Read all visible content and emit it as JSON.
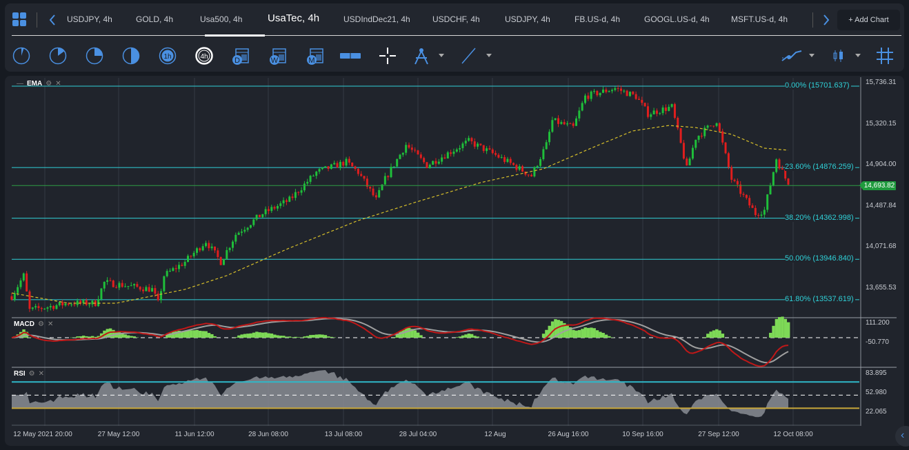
{
  "tabs": [
    "USDJPY, 4h",
    "GOLD, 4h",
    "Usa500, 4h",
    "UsaTec, 4h",
    "USDIndDec21, 4h",
    "USDCHF, 4h",
    "USDJPY, 4h",
    "FB.US-d, 4h",
    "GOOGL.US-d, 4h",
    "MSFT.US-d, 4h"
  ],
  "active_tab": 3,
  "add_chart": "+ Add Chart",
  "toolbar": {
    "timeframes": [
      "1m",
      "5m",
      "15m",
      "30m",
      "1h",
      "4h",
      "D",
      "W",
      "M"
    ],
    "icons": [
      "grid-icon",
      "chevron-left-icon",
      "chevron-right-icon",
      "ruler-icon",
      "crosshair-icon",
      "compass-icon",
      "line-tool-icon",
      "indicator-icon",
      "candle-type-icon",
      "hash-grid-icon"
    ]
  },
  "panes": {
    "main": "EMA",
    "macd": "MACD",
    "rsi": "RSI"
  },
  "price_axis": [
    "15,736.31",
    "15,320.15",
    "14,904.00",
    "14,487.84",
    "14,071.68",
    "13,655.53"
  ],
  "current_price": "14,693.82",
  "fib_levels": [
    {
      "label": "0.00% (15701.637)",
      "price": 15701.637
    },
    {
      "label": "23.60% (14876.259)",
      "price": 14876.259
    },
    {
      "label": "38.20% (14362.998)",
      "price": 14362.998
    },
    {
      "label": "50.00% (13946.840)",
      "price": 13946.84
    },
    {
      "label": "61.80% (13537.619)",
      "price": 13537.619
    }
  ],
  "macd_axis": [
    "111.200",
    "-50.770"
  ],
  "rsi_axis": [
    "83.895",
    "52.980",
    "22.065"
  ],
  "time_axis": [
    "12 May 2021 20:00",
    "27 May 12:00",
    "11 Jun 12:00",
    "28 Jun 08:00",
    "13 Jul 08:00",
    "28 Jul 04:00",
    "12 Aug",
    "26 Aug 16:00",
    "10 Sep 16:00",
    "27 Sep 12:00",
    "12 Oct 08:00"
  ],
  "colors": {
    "up": "#1fbf3a",
    "down": "#e01e1e",
    "fib": "#2fd1d8",
    "ema": "#d8c02a",
    "accent": "#4a90e2"
  },
  "chart_data": {
    "type": "candlestick",
    "symbol": "UsaTec, 4h",
    "bars": 260,
    "close_path": [
      [
        0,
        13572
      ],
      [
        4,
        13782
      ],
      [
        6,
        13432
      ],
      [
        19,
        13502
      ],
      [
        28,
        13502
      ],
      [
        31,
        13712
      ],
      [
        47,
        13642
      ],
      [
        49,
        13502
      ],
      [
        51,
        13782
      ],
      [
        58,
        13921
      ],
      [
        65,
        14131
      ],
      [
        70,
        13921
      ],
      [
        75,
        14200
      ],
      [
        84,
        14410
      ],
      [
        93,
        14549
      ],
      [
        102,
        14829
      ],
      [
        112,
        14933
      ],
      [
        116,
        14829
      ],
      [
        122,
        14549
      ],
      [
        125,
        14759
      ],
      [
        132,
        15108
      ],
      [
        139,
        14898
      ],
      [
        153,
        15143
      ],
      [
        162,
        15003
      ],
      [
        174,
        14794
      ],
      [
        179,
        15108
      ],
      [
        181,
        15352
      ],
      [
        188,
        15282
      ],
      [
        192,
        15597
      ],
      [
        202,
        15680
      ],
      [
        209,
        15597
      ],
      [
        213,
        15422
      ],
      [
        221,
        15492
      ],
      [
        226,
        14864
      ],
      [
        229,
        15178
      ],
      [
        236,
        15352
      ],
      [
        241,
        14759
      ],
      [
        249,
        14410
      ],
      [
        252,
        14445
      ],
      [
        256,
        14968
      ],
      [
        260,
        14703
      ]
    ],
    "ema_path": [
      [
        0,
        13606
      ],
      [
        19,
        13502
      ],
      [
        35,
        13502
      ],
      [
        58,
        13642
      ],
      [
        72,
        13782
      ],
      [
        93,
        14061
      ],
      [
        116,
        14340
      ],
      [
        134,
        14514
      ],
      [
        157,
        14724
      ],
      [
        178,
        14864
      ],
      [
        194,
        15073
      ],
      [
        208,
        15248
      ],
      [
        220,
        15303
      ],
      [
        229,
        15282
      ],
      [
        241,
        15213
      ],
      [
        252,
        15073
      ],
      [
        260,
        15052
      ]
    ],
    "price_range": [
      13537,
      15736
    ],
    "rsi_levels": [
      70,
      50,
      30
    ]
  }
}
